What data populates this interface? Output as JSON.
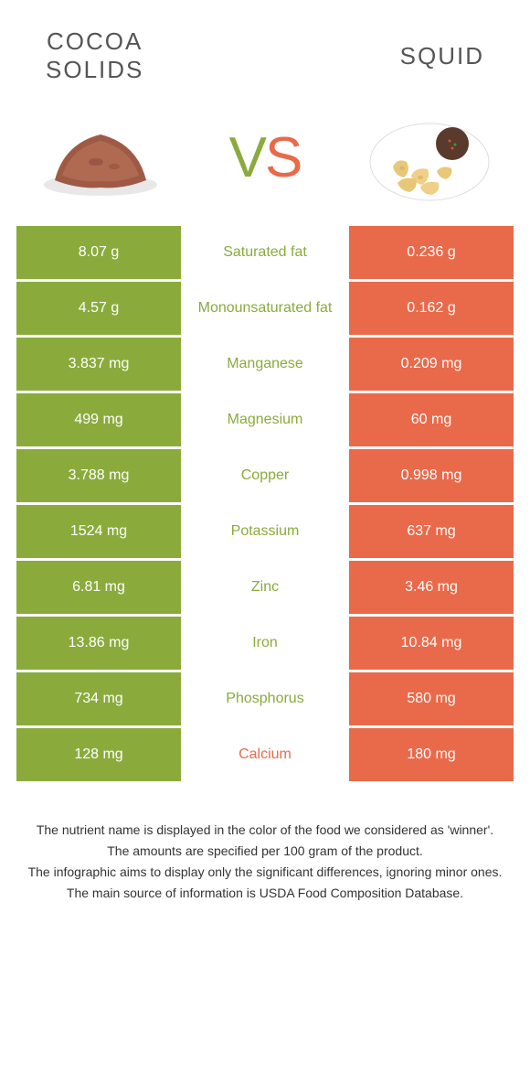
{
  "left_food": {
    "title": "COCOA\nSOLIDS"
  },
  "right_food": {
    "title": "SQUID"
  },
  "colors": {
    "green": "#8aab3c",
    "orange": "#e96a4a",
    "text_dark": "#555555",
    "footer_text": "#333333",
    "bg": "#ffffff"
  },
  "rows": [
    {
      "left": "8.07 g",
      "mid": "Saturated fat",
      "right": "0.236 g",
      "winner": "left"
    },
    {
      "left": "4.57 g",
      "mid": "Monounsaturated fat",
      "right": "0.162 g",
      "winner": "left"
    },
    {
      "left": "3.837 mg",
      "mid": "Manganese",
      "right": "0.209 mg",
      "winner": "left"
    },
    {
      "left": "499 mg",
      "mid": "Magnesium",
      "right": "60 mg",
      "winner": "left"
    },
    {
      "left": "3.788 mg",
      "mid": "Copper",
      "right": "0.998 mg",
      "winner": "left"
    },
    {
      "left": "1524 mg",
      "mid": "Potassium",
      "right": "637 mg",
      "winner": "left"
    },
    {
      "left": "6.81 mg",
      "mid": "Zinc",
      "right": "3.46 mg",
      "winner": "left"
    },
    {
      "left": "13.86 mg",
      "mid": "Iron",
      "right": "10.84 mg",
      "winner": "left"
    },
    {
      "left": "734 mg",
      "mid": "Phosphorus",
      "right": "580 mg",
      "winner": "left"
    },
    {
      "left": "128 mg",
      "mid": "Calcium",
      "right": "180 mg",
      "winner": "right"
    }
  ],
  "footer": [
    "The nutrient name is displayed in the color of the food we considered as 'winner'.",
    "The amounts are specified per 100 gram of the product.",
    "The infographic aims to display only the significant differences, ignoring minor ones.",
    "The main source of information is USDA Food Composition Database."
  ]
}
